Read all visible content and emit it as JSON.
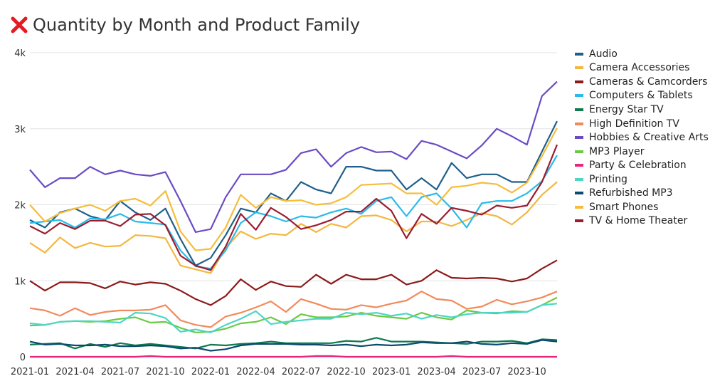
{
  "title": "Quantity by Month and Product Family",
  "icon": "x-mark-icon",
  "colors": {
    "title_icon": "#e31b23"
  },
  "chart_data": {
    "type": "line",
    "title": "Quantity by Month and Product Family",
    "xlabel": "",
    "ylabel": "",
    "ylim": [
      0,
      4000
    ],
    "y_ticks": [
      0,
      1000,
      2000,
      3000,
      4000
    ],
    "y_tick_labels": [
      "0",
      "1k",
      "2k",
      "3k",
      "4k"
    ],
    "x_tick_labels": [
      "2021-01",
      "2021-04",
      "2021-07",
      "2021-10",
      "2022-01",
      "2022-04",
      "2022-07",
      "2022-10",
      "2023-01",
      "2023-04",
      "2023-07",
      "2023-10"
    ],
    "x_tick_positions": [
      0,
      3,
      6,
      9,
      12,
      15,
      18,
      21,
      24,
      27,
      30,
      33
    ],
    "grid": true,
    "legend": "right",
    "x": [
      "2021-01",
      "2021-02",
      "2021-03",
      "2021-04",
      "2021-05",
      "2021-06",
      "2021-07",
      "2021-08",
      "2021-09",
      "2021-10",
      "2021-11",
      "2021-12",
      "2022-01",
      "2022-02",
      "2022-03",
      "2022-04",
      "2022-05",
      "2022-06",
      "2022-07",
      "2022-08",
      "2022-09",
      "2022-10",
      "2022-11",
      "2022-12",
      "2023-01",
      "2023-02",
      "2023-03",
      "2023-04",
      "2023-05",
      "2023-06",
      "2023-07",
      "2023-08",
      "2023-09",
      "2023-10",
      "2023-11",
      "2023-12"
    ],
    "series": [
      {
        "name": "Audio",
        "color": "#1f5f8b",
        "values": [
          1800,
          1700,
          1900,
          1950,
          1850,
          1800,
          2050,
          1900,
          1800,
          1950,
          1550,
          1200,
          1300,
          1600,
          1950,
          1900,
          2150,
          2050,
          2300,
          2200,
          2150,
          2500,
          2500,
          2450,
          2450,
          2200,
          2350,
          2200,
          2550,
          2350,
          2400,
          2400,
          2300,
          2300,
          2700,
          3100
        ]
      },
      {
        "name": "Camera Accessories",
        "color": "#f4b73f",
        "values": [
          1500,
          1370,
          1570,
          1430,
          1500,
          1450,
          1460,
          1600,
          1590,
          1560,
          1200,
          1150,
          1100,
          1430,
          1650,
          1550,
          1620,
          1600,
          1750,
          1640,
          1750,
          1700,
          1850,
          1860,
          1800,
          1650,
          1780,
          1780,
          1720,
          1800,
          1890,
          1850,
          1740,
          1900,
          2130,
          2300
        ]
      },
      {
        "name": "Cameras & Camcorders",
        "color": "#8b1a1a",
        "values": [
          1000,
          870,
          980,
          980,
          970,
          900,
          990,
          950,
          980,
          960,
          870,
          760,
          680,
          800,
          1020,
          880,
          990,
          930,
          920,
          1080,
          960,
          1080,
          1020,
          1020,
          1080,
          950,
          1000,
          1140,
          1040,
          1030,
          1040,
          1030,
          990,
          1030,
          1160,
          1270
        ]
      },
      {
        "name": "Computers & Tablets",
        "color": "#2bbbe8",
        "values": [
          1760,
          1780,
          1800,
          1700,
          1820,
          1810,
          1880,
          1780,
          1760,
          1740,
          1400,
          1190,
          1160,
          1400,
          1760,
          1900,
          1850,
          1780,
          1850,
          1830,
          1900,
          1950,
          1880,
          2050,
          2100,
          1850,
          2100,
          2150,
          1950,
          1700,
          2020,
          2050,
          2050,
          2150,
          2310,
          2650
        ]
      },
      {
        "name": "Energy Star TV",
        "color": "#0e7a4f",
        "values": [
          160,
          170,
          180,
          110,
          170,
          130,
          180,
          150,
          170,
          150,
          130,
          110,
          160,
          150,
          170,
          180,
          200,
          180,
          180,
          180,
          180,
          210,
          200,
          250,
          200,
          200,
          200,
          190,
          180,
          170,
          200,
          200,
          210,
          180,
          230,
          220
        ]
      },
      {
        "name": "High Definition TV",
        "color": "#f28a5b",
        "values": [
          640,
          610,
          540,
          640,
          550,
          590,
          610,
          610,
          620,
          680,
          480,
          420,
          390,
          530,
          580,
          650,
          730,
          590,
          760,
          700,
          630,
          620,
          680,
          650,
          700,
          740,
          860,
          760,
          740,
          630,
          660,
          750,
          690,
          730,
          780,
          860
        ]
      },
      {
        "name": "Hobbies & Creative Arts",
        "color": "#6a4bc4",
        "values": [
          2460,
          2230,
          2350,
          2350,
          2500,
          2400,
          2450,
          2400,
          2380,
          2430,
          2050,
          1640,
          1680,
          2100,
          2400,
          2400,
          2400,
          2460,
          2680,
          2730,
          2500,
          2680,
          2760,
          2690,
          2700,
          2600,
          2840,
          2790,
          2700,
          2610,
          2780,
          3000,
          2900,
          2790,
          3430,
          3620
        ]
      },
      {
        "name": "MP3 Player",
        "color": "#6bc945",
        "values": [
          410,
          420,
          460,
          470,
          460,
          470,
          500,
          520,
          450,
          460,
          380,
          320,
          330,
          370,
          440,
          460,
          520,
          430,
          560,
          520,
          520,
          530,
          580,
          540,
          520,
          500,
          580,
          520,
          490,
          610,
          580,
          570,
          600,
          590,
          680,
          780
        ]
      },
      {
        "name": "Party & Celebration",
        "color": "#e8257a",
        "values": [
          0,
          0,
          0,
          0,
          0,
          0,
          0,
          0,
          10,
          0,
          0,
          0,
          0,
          0,
          0,
          0,
          0,
          0,
          0,
          10,
          10,
          0,
          0,
          0,
          0,
          0,
          0,
          0,
          10,
          0,
          0,
          0,
          0,
          0,
          0,
          0
        ]
      },
      {
        "name": "Printing",
        "color": "#4dd6c4",
        "values": [
          440,
          420,
          460,
          470,
          470,
          460,
          450,
          580,
          570,
          510,
          330,
          360,
          320,
          420,
          500,
          600,
          430,
          460,
          480,
          500,
          500,
          580,
          560,
          580,
          540,
          570,
          500,
          550,
          520,
          560,
          580,
          580,
          580,
          590,
          680,
          700
        ]
      },
      {
        "name": "Refurbished MP3",
        "color": "#0b4a6f",
        "values": [
          200,
          160,
          170,
          150,
          150,
          160,
          140,
          140,
          150,
          140,
          110,
          120,
          80,
          100,
          150,
          170,
          170,
          170,
          160,
          160,
          150,
          160,
          140,
          160,
          150,
          160,
          190,
          180,
          180,
          200,
          170,
          160,
          180,
          170,
          220,
          200
        ]
      },
      {
        "name": "Smart Phones",
        "color": "#f6bd3a",
        "values": [
          2000,
          1780,
          1890,
          1950,
          2000,
          1920,
          2050,
          2080,
          1990,
          2180,
          1650,
          1400,
          1420,
          1700,
          2130,
          1960,
          2100,
          2050,
          2060,
          2000,
          2020,
          2100,
          2260,
          2270,
          2280,
          2150,
          2150,
          2000,
          2230,
          2250,
          2290,
          2270,
          2160,
          2290,
          2640,
          3010
        ]
      },
      {
        "name": "TV & Home Theater",
        "color": "#9b1c2f",
        "values": [
          1720,
          1620,
          1760,
          1680,
          1790,
          1790,
          1720,
          1870,
          1880,
          1730,
          1330,
          1200,
          1140,
          1450,
          1880,
          1670,
          1960,
          1840,
          1680,
          1730,
          1800,
          1910,
          1910,
          2080,
          1920,
          1560,
          1880,
          1750,
          1960,
          1920,
          1870,
          1990,
          1960,
          1990,
          2300,
          2790
        ]
      }
    ]
  }
}
